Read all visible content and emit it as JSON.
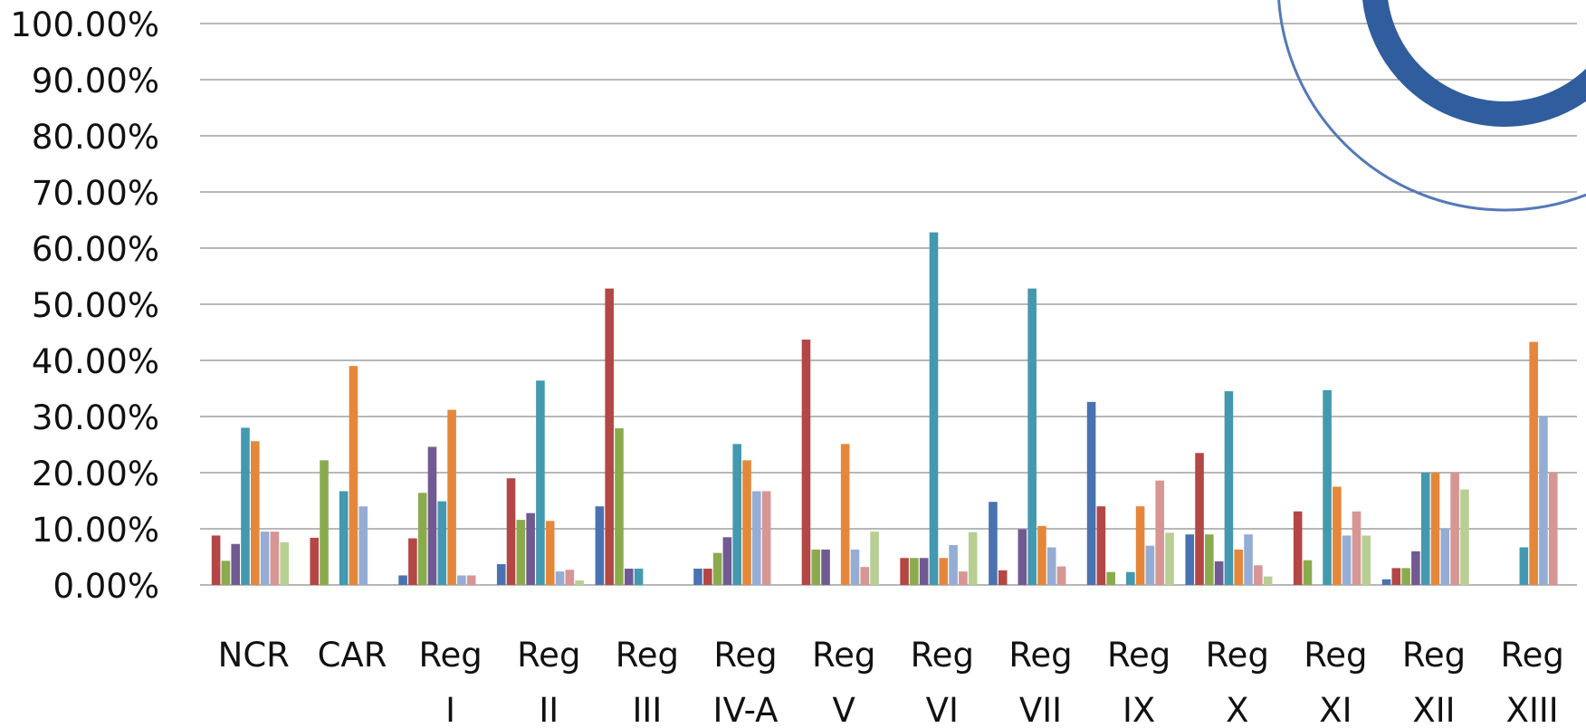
{
  "chart_data": {
    "type": "bar",
    "ylim": [
      0,
      100
    ],
    "yticks": [
      "0.00%",
      "10.00%",
      "20.00%",
      "30.00%",
      "40.00%",
      "50.00%",
      "60.00%",
      "70.00%",
      "80.00%",
      "90.00%",
      "100.00%"
    ],
    "grid": true,
    "categories": [
      [
        "NCR"
      ],
      [
        "CAR"
      ],
      [
        "Reg",
        "I"
      ],
      [
        "Reg",
        "II"
      ],
      [
        "Reg",
        "III"
      ],
      [
        "Reg",
        "IV-A"
      ],
      [
        "Reg",
        "V"
      ],
      [
        "Reg",
        "VI"
      ],
      [
        "Reg",
        "VII"
      ],
      [
        "Reg",
        "IX"
      ],
      [
        "Reg",
        "X"
      ],
      [
        "Reg",
        "XI"
      ],
      [
        "Reg",
        "XII"
      ],
      [
        "Reg",
        "XIII"
      ]
    ],
    "series_colors": [
      "#4A72B0",
      "#B34745",
      "#8AAB4D",
      "#715A92",
      "#4399AF",
      "#E5873A",
      "#95ADD5",
      "#D79594",
      "#B8CF93"
    ],
    "series": [
      {
        "values": [
          0,
          0,
          1.7,
          3.7,
          14.0,
          2.9,
          0,
          0,
          14.8,
          32.6,
          9.0,
          0,
          1.0,
          0
        ]
      },
      {
        "values": [
          8.8,
          8.4,
          8.3,
          19.0,
          52.8,
          2.9,
          43.7,
          4.8,
          2.6,
          14.0,
          23.5,
          13.1,
          3.0,
          0
        ]
      },
      {
        "values": [
          4.3,
          22.2,
          16.4,
          11.6,
          27.9,
          5.7,
          6.3,
          4.8,
          0,
          2.3,
          9.0,
          4.4,
          3.0,
          0
        ]
      },
      {
        "values": [
          7.3,
          0,
          24.6,
          12.8,
          2.9,
          8.5,
          6.3,
          4.8,
          9.9,
          0,
          4.2,
          0,
          6.0,
          0
        ]
      },
      {
        "values": [
          28.0,
          16.7,
          14.9,
          36.4,
          2.9,
          25.1,
          0,
          62.8,
          52.8,
          2.3,
          34.5,
          34.7,
          20.0,
          6.7
        ]
      },
      {
        "values": [
          25.6,
          39.0,
          31.2,
          11.4,
          0,
          22.2,
          25.1,
          4.8,
          10.5,
          14.0,
          6.3,
          17.5,
          20.0,
          43.3
        ]
      },
      {
        "values": [
          9.5,
          14.0,
          1.7,
          2.4,
          0,
          16.7,
          6.3,
          7.1,
          6.7,
          7.0,
          9.0,
          8.8,
          10.0,
          30.0
        ]
      },
      {
        "values": [
          9.5,
          0,
          1.7,
          2.7,
          0,
          16.7,
          3.2,
          2.4,
          3.3,
          18.6,
          3.5,
          13.1,
          20.0,
          20.0
        ]
      },
      {
        "values": [
          7.6,
          0,
          0,
          0.8,
          0,
          0,
          9.5,
          9.4,
          0,
          9.3,
          1.5,
          8.8,
          17.0,
          0
        ]
      }
    ]
  }
}
